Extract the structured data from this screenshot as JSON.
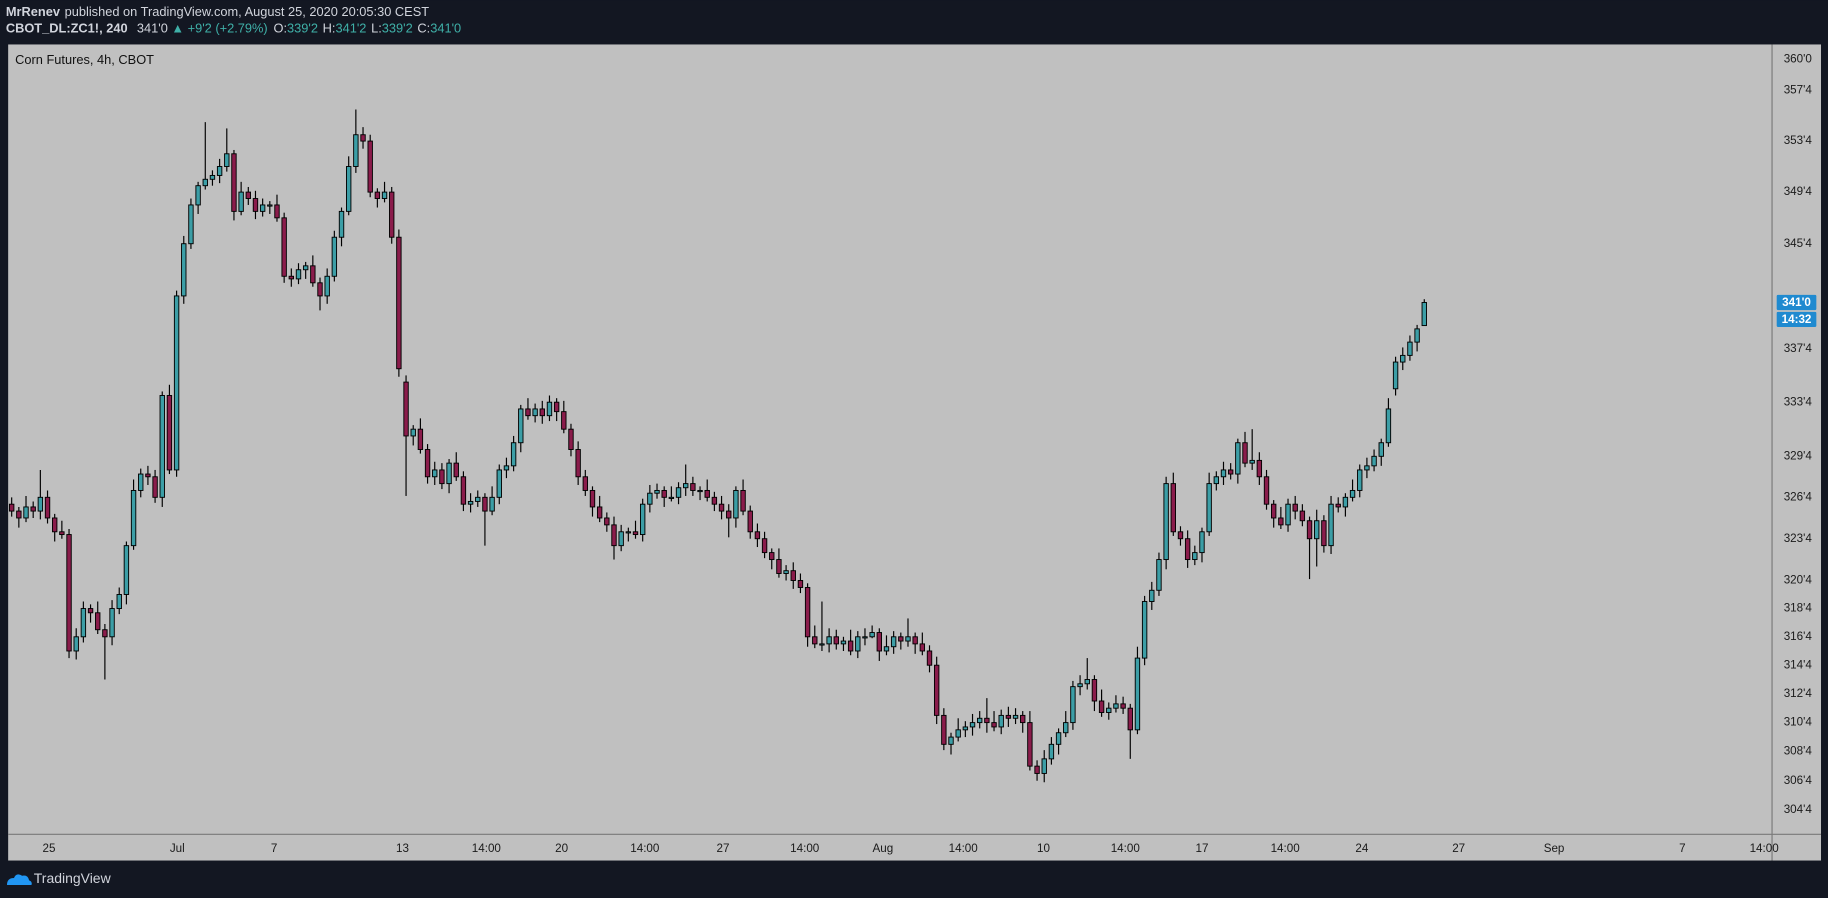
{
  "header": {
    "publisher": "MrRenev",
    "published": "published on TradingView.com, August 25, 2020 20:05:30 CEST",
    "symbol": "CBOT_DL:ZC1!, 240",
    "last": "341'0",
    "change": "▲ +9'2 (+2.79%)",
    "ohlc": [
      {
        "label": "O:",
        "value": "339'2"
      },
      {
        "label": "H:",
        "value": "341'2"
      },
      {
        "label": "L:",
        "value": "339'2"
      },
      {
        "label": "C:",
        "value": "341'0"
      }
    ]
  },
  "footer": {
    "brand": "TradingView"
  },
  "chart_data": {
    "type": "candlestick",
    "title": "Corn Futures, 4h, CBOT",
    "up_color": "#3c9ea6",
    "down_color": "#8a1c4b",
    "log": true,
    "grid": false,
    "open": [
      326.0,
      325.5,
      325.0,
      325.8,
      325.5,
      326.5,
      325.0,
      324.0,
      323.8,
      315.5,
      316.5,
      318.5,
      318.2,
      317.0,
      316.5,
      318.5,
      319.5,
      323.0,
      327.0,
      328.2,
      328.0,
      326.5,
      334.0,
      328.5,
      341.5,
      345.5,
      348.5,
      350.0,
      350.5,
      350.8,
      351.5,
      352.5,
      348.0,
      349.5,
      349.0,
      348.0,
      348.5,
      348.5,
      347.5,
      343.0,
      342.8,
      343.5,
      343.8,
      342.5,
      341.5,
      343.0,
      346.0,
      348.0,
      351.5,
      354.0,
      353.5,
      349.5,
      349.0,
      349.5,
      346.0,
      335.0,
      331.0,
      331.5,
      330.0,
      328.0,
      328.5,
      327.5,
      329.0,
      328.0,
      326.0,
      326.2,
      326.5,
      325.5,
      326.5,
      328.5,
      328.8,
      330.5,
      333.0,
      332.5,
      333.0,
      332.5,
      333.5,
      332.8,
      331.5,
      330.0,
      328.0,
      327.0,
      325.8,
      325.0,
      324.5,
      323.0,
      324.0,
      324.0,
      323.8,
      326.0,
      326.8,
      327.0,
      326.5,
      326.5,
      327.2,
      327.5,
      327.0,
      327.0,
      326.5,
      326.0,
      325.5,
      325.0,
      327.0,
      325.5,
      324.0,
      323.5,
      322.5,
      322.0,
      321.0,
      321.2,
      320.5,
      320.0,
      316.5,
      316.0,
      316.0,
      316.5,
      316.0,
      316.2,
      315.5,
      316.5,
      316.5,
      316.8,
      315.5,
      315.8,
      316.5,
      316.2,
      316.5,
      316.0,
      315.5,
      314.5,
      311.0,
      309.0,
      309.5,
      310.0,
      310.2,
      310.5,
      310.8,
      310.5,
      310.2,
      311.0,
      310.8,
      311.0,
      310.5,
      307.5,
      307.0,
      308.0,
      309.0,
      309.8,
      310.5,
      313.0,
      313.2,
      313.5,
      312.0,
      311.2,
      311.5,
      311.8,
      311.5,
      310.0,
      315.0,
      319.0,
      319.8,
      322.0,
      327.5,
      324.0,
      323.5,
      322.0,
      322.5,
      324.0,
      327.5,
      328.0,
      328.5,
      328.2,
      330.5,
      329.0,
      329.2,
      328.0,
      326.0,
      325.0,
      324.5,
      326.0,
      325.5,
      324.8,
      323.5,
      324.8,
      323.0,
      326.0,
      325.8,
      326.5,
      327.0,
      328.5,
      328.8,
      329.5,
      330.5,
      334.5,
      336.5,
      337.0,
      338.0,
      339.25
    ],
    "high": [
      326.5,
      325.8,
      326.6,
      326.2,
      328.5,
      327.0,
      325.3,
      324.8,
      324.2,
      317.1,
      319.0,
      318.8,
      319.0,
      317.4,
      319.1,
      320.0,
      323.3,
      327.8,
      328.6,
      328.8,
      328.5,
      334.3,
      334.8,
      341.9,
      346.1,
      349.0,
      350.3,
      355.0,
      351.2,
      352.1,
      354.5,
      352.8,
      350.3,
      349.9,
      349.6,
      349.0,
      348.8,
      349.3,
      347.9,
      343.6,
      344.0,
      344.1,
      344.6,
      342.9,
      343.6,
      346.5,
      348.3,
      352.3,
      356.0,
      354.6,
      354.0,
      349.8,
      350.3,
      349.9,
      346.6,
      335.5,
      331.8,
      332.3,
      330.4,
      329.1,
      329.0,
      329.3,
      329.8,
      328.4,
      326.8,
      327.0,
      326.8,
      327.3,
      328.9,
      329.4,
      331.0,
      333.3,
      333.8,
      333.4,
      333.6,
      334.0,
      333.8,
      333.6,
      331.9,
      330.6,
      328.5,
      327.3,
      326.6,
      325.4,
      325.1,
      324.5,
      324.3,
      324.8,
      326.4,
      327.4,
      327.5,
      327.3,
      327.3,
      327.6,
      328.9,
      328.0,
      327.3,
      327.8,
      326.9,
      326.6,
      326.0,
      327.3,
      327.8,
      325.9,
      324.6,
      324.0,
      322.8,
      322.8,
      321.6,
      321.8,
      321.0,
      320.3,
      317.3,
      319.0,
      317.1,
      317.0,
      316.5,
      317.0,
      316.9,
      317.1,
      317.3,
      317.1,
      316.6,
      316.9,
      316.8,
      317.8,
      316.8,
      316.8,
      315.9,
      315.1,
      311.5,
      309.8,
      310.8,
      310.6,
      311.1,
      311.3,
      312.2,
      311.3,
      311.4,
      311.6,
      311.5,
      311.3,
      311.3,
      307.9,
      308.6,
      309.5,
      310.1,
      311.3,
      313.4,
      313.8,
      315.0,
      313.8,
      312.8,
      311.9,
      312.4,
      312.3,
      311.8,
      315.8,
      319.4,
      320.4,
      322.5,
      328.0,
      328.3,
      324.4,
      324.1,
      323.0,
      324.3,
      328.3,
      328.4,
      329.1,
      329.0,
      330.8,
      331.3,
      331.5,
      329.8,
      328.5,
      326.3,
      325.8,
      326.4,
      326.6,
      326.0,
      325.1,
      325.6,
      325.2,
      326.6,
      326.5,
      326.8,
      327.8,
      328.9,
      329.4,
      330.0,
      330.8,
      333.8,
      336.9,
      337.6,
      338.5,
      339.3,
      341.25
    ],
    "low": [
      325.1,
      324.3,
      324.7,
      325.0,
      324.9,
      324.6,
      323.3,
      323.5,
      315.0,
      314.9,
      316.1,
      317.5,
      316.7,
      313.5,
      315.9,
      318.1,
      318.8,
      322.7,
      326.5,
      327.4,
      326.1,
      325.8,
      328.2,
      328.0,
      340.9,
      345.1,
      347.8,
      349.7,
      350.0,
      350.2,
      351.1,
      347.3,
      347.7,
      348.5,
      347.4,
      347.6,
      347.8,
      347.2,
      342.5,
      342.2,
      342.4,
      342.8,
      342.2,
      340.4,
      340.9,
      342.6,
      345.3,
      347.7,
      351.0,
      352.9,
      349.1,
      348.3,
      348.7,
      345.5,
      335.4,
      326.6,
      330.3,
      329.7,
      327.5,
      327.4,
      327.1,
      326.8,
      327.7,
      325.5,
      325.4,
      325.8,
      323.0,
      325.2,
      326.0,
      327.9,
      328.4,
      329.8,
      332.2,
      332.0,
      331.9,
      332.1,
      332.1,
      331.2,
      329.5,
      327.4,
      326.6,
      325.1,
      324.7,
      324.0,
      322.0,
      322.6,
      323.3,
      323.5,
      323.3,
      325.4,
      326.4,
      325.8,
      326.2,
      326.0,
      326.6,
      326.6,
      326.3,
      326.2,
      325.5,
      324.9,
      323.6,
      324.3,
      325.2,
      323.5,
      322.9,
      322.1,
      321.3,
      320.7,
      320.5,
      319.9,
      319.6,
      315.8,
      315.7,
      315.5,
      315.4,
      315.6,
      315.5,
      315.2,
      315.0,
      315.9,
      316.4,
      314.8,
      315.2,
      315.3,
      315.6,
      315.8,
      315.3,
      315.2,
      314.0,
      310.4,
      308.6,
      308.3,
      309.2,
      309.5,
      309.6,
      310.1,
      309.8,
      309.9,
      309.7,
      310.2,
      310.4,
      309.8,
      307.2,
      306.5,
      306.4,
      307.6,
      308.3,
      309.5,
      310.0,
      312.4,
      312.8,
      311.3,
      310.9,
      310.7,
      311.2,
      311.1,
      308.0,
      309.7,
      314.5,
      318.4,
      319.4,
      321.3,
      323.7,
      323.0,
      321.4,
      321.6,
      321.8,
      323.7,
      327.0,
      327.4,
      327.8,
      327.5,
      328.7,
      328.5,
      327.4,
      325.6,
      324.3,
      324.2,
      324.0,
      324.9,
      324.4,
      320.6,
      321.5,
      322.5,
      322.4,
      325.4,
      325.1,
      326.2,
      326.5,
      327.9,
      328.4,
      328.8,
      330.2,
      334.0,
      335.9,
      336.6,
      337.3,
      339.25
    ],
    "close": [
      325.5,
      325.0,
      325.8,
      325.5,
      326.5,
      325.0,
      324.0,
      323.8,
      315.5,
      316.5,
      318.5,
      318.2,
      317.0,
      316.5,
      318.5,
      319.5,
      323.0,
      327.0,
      328.2,
      328.0,
      326.5,
      334.0,
      328.5,
      341.5,
      345.5,
      348.5,
      350.0,
      350.5,
      350.8,
      351.5,
      352.5,
      348.0,
      349.5,
      349.0,
      348.0,
      348.5,
      348.5,
      347.5,
      343.0,
      342.8,
      343.5,
      343.8,
      342.5,
      341.5,
      343.0,
      346.0,
      348.0,
      351.5,
      354.0,
      353.5,
      349.5,
      349.0,
      349.5,
      346.0,
      336.0,
      331.0,
      331.5,
      330.0,
      328.0,
      328.5,
      327.5,
      329.0,
      328.0,
      326.0,
      326.2,
      326.5,
      325.5,
      326.5,
      328.5,
      328.8,
      330.5,
      333.0,
      332.5,
      333.0,
      332.5,
      333.5,
      332.8,
      331.5,
      330.0,
      328.0,
      327.0,
      325.8,
      325.0,
      324.5,
      323.0,
      324.0,
      324.0,
      323.8,
      326.0,
      326.8,
      327.0,
      326.5,
      326.5,
      327.2,
      327.5,
      327.0,
      327.0,
      326.5,
      326.0,
      325.5,
      325.0,
      327.0,
      325.5,
      324.0,
      323.5,
      322.5,
      322.0,
      321.0,
      321.2,
      320.5,
      320.0,
      316.5,
      316.0,
      316.0,
      316.5,
      316.0,
      316.2,
      315.5,
      316.5,
      316.5,
      316.8,
      315.5,
      315.8,
      316.5,
      316.2,
      316.5,
      316.0,
      315.5,
      314.5,
      311.0,
      309.0,
      309.5,
      310.0,
      310.2,
      310.5,
      310.8,
      310.5,
      310.2,
      311.0,
      310.8,
      311.0,
      310.5,
      307.5,
      307.0,
      308.0,
      309.0,
      309.8,
      310.5,
      313.0,
      313.2,
      313.5,
      312.0,
      311.2,
      311.5,
      311.8,
      311.5,
      310.0,
      315.0,
      319.0,
      319.8,
      322.0,
      327.5,
      324.0,
      323.5,
      322.0,
      322.5,
      324.0,
      327.5,
      328.0,
      328.5,
      328.2,
      330.5,
      329.0,
      329.2,
      328.0,
      326.0,
      325.0,
      324.5,
      326.0,
      325.5,
      324.8,
      323.5,
      324.8,
      323.0,
      326.0,
      325.8,
      326.5,
      327.0,
      328.5,
      328.8,
      329.5,
      330.5,
      333.0,
      336.5,
      337.0,
      338.0,
      339.0,
      341.0
    ],
    "xlim": [
      -0.49,
      245.5
    ],
    "xticks": [
      {
        "value": 5.2,
        "label": "25"
      },
      {
        "value": 23.1,
        "label": "Jul"
      },
      {
        "value": 36.6,
        "label": "7"
      },
      {
        "value": 54.5,
        "label": "13"
      },
      {
        "value": 66.2,
        "label": "14:00"
      },
      {
        "value": 76.7,
        "label": "20"
      },
      {
        "value": 88.3,
        "label": "14:00"
      },
      {
        "value": 99.2,
        "label": "27"
      },
      {
        "value": 110.6,
        "label": "14:00"
      },
      {
        "value": 121.5,
        "label": "Aug"
      },
      {
        "value": 132.7,
        "label": "14:00"
      },
      {
        "value": 143.9,
        "label": "10"
      },
      {
        "value": 155.3,
        "label": "14:00"
      },
      {
        "value": 166.0,
        "label": "17"
      },
      {
        "value": 177.6,
        "label": "14:00"
      },
      {
        "value": 188.3,
        "label": "24"
      },
      {
        "value": 201.8,
        "label": "27"
      },
      {
        "value": 215.1,
        "label": "Sep"
      },
      {
        "value": 233.0,
        "label": "7"
      },
      {
        "value": 244.4,
        "label": "14:00"
      }
    ],
    "ylim": [
      302.9,
      361.2
    ],
    "yticks": [
      {
        "value": 360,
        "label": "360'0"
      },
      {
        "value": 357.5,
        "label": "357'4"
      },
      {
        "value": 353.5,
        "label": "353'4"
      },
      {
        "value": 349.5,
        "label": "349'4"
      },
      {
        "value": 345.5,
        "label": "345'4"
      },
      {
        "value": 337.5,
        "label": "337'4"
      },
      {
        "value": 333.5,
        "label": "333'4"
      },
      {
        "value": 329.5,
        "label": "329'4"
      },
      {
        "value": 326.5,
        "label": "326'4"
      },
      {
        "value": 323.5,
        "label": "323'4"
      },
      {
        "value": 320.5,
        "label": "320'4"
      },
      {
        "value": 318.5,
        "label": "318'4"
      },
      {
        "value": 316.5,
        "label": "316'4"
      },
      {
        "value": 314.5,
        "label": "314'4"
      },
      {
        "value": 312.5,
        "label": "312'4"
      },
      {
        "value": 310.5,
        "label": "310'4"
      },
      {
        "value": 308.5,
        "label": "308'4"
      },
      {
        "value": 306.5,
        "label": "306'4"
      },
      {
        "value": 304.5,
        "label": "304'4"
      }
    ],
    "price_tag": {
      "value": 341,
      "label": "341'0",
      "color": "#1f8ad0"
    },
    "countdown": "14:32"
  }
}
